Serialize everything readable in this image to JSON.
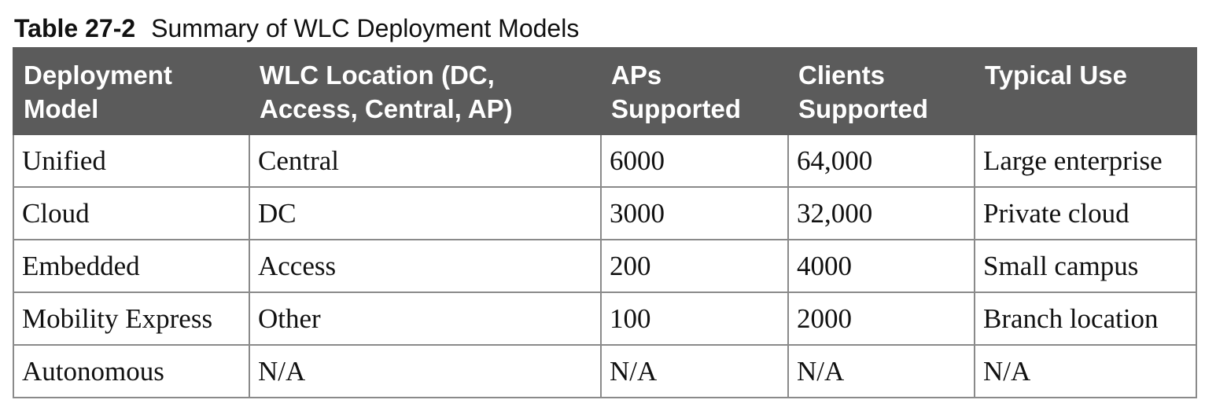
{
  "caption": {
    "label": "Table 27-2",
    "title": "Summary of WLC Deployment Models"
  },
  "table": {
    "headers": [
      "Deployment\nModel",
      "WLC Location (DC,\nAccess, Central, AP)",
      "APs\nSupported",
      "Clients\nSupported",
      "Typical Use"
    ],
    "rows": [
      [
        "Unified",
        "Central",
        "6000",
        "64,000",
        "Large enterprise"
      ],
      [
        "Cloud",
        "DC",
        "3000",
        "32,000",
        "Private cloud"
      ],
      [
        "Embedded",
        "Access",
        "200",
        "4000",
        "Small campus"
      ],
      [
        "Mobility Express",
        "Other",
        "100",
        "2000",
        "Branch location"
      ],
      [
        "Autonomous",
        "N/A",
        "N/A",
        "N/A",
        "N/A"
      ]
    ]
  }
}
